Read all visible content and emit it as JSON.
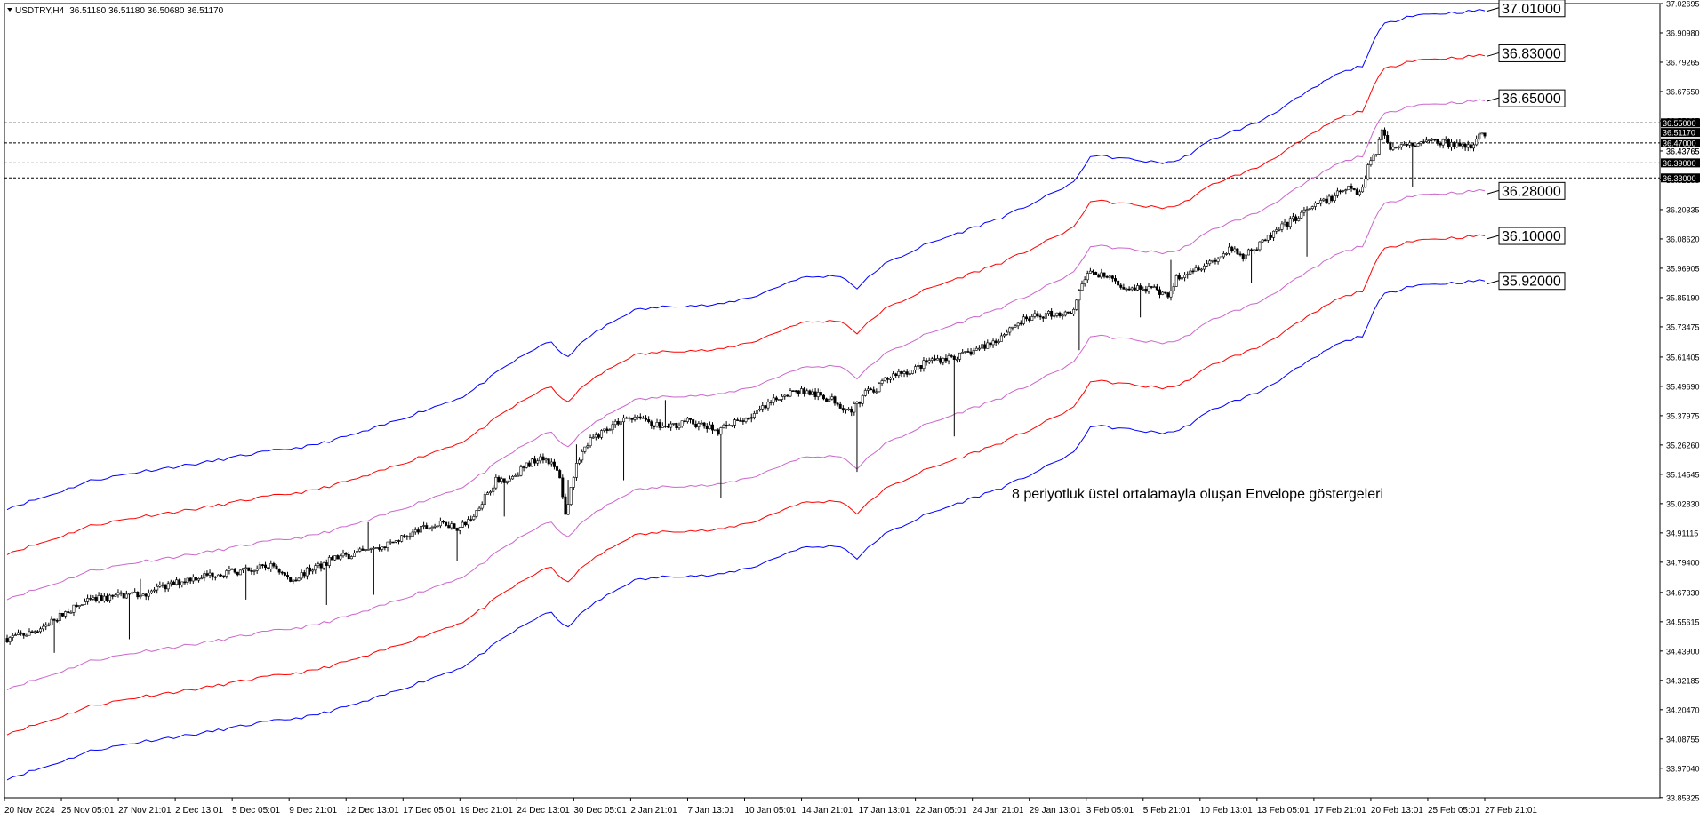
{
  "header": {
    "symbol_label": "USDTRY,H4",
    "ohlc": "36.51180 36.51180 36.50680 36.51170"
  },
  "annotation": "8 periyotluk üstel ortalamayla oluşan Envelope göstergeleri",
  "colors": {
    "background": "#ffffff",
    "candles": "#000000",
    "outer_band": "#0000ff",
    "middle_band": "#ff0000",
    "inner_band": "#cc66cc",
    "price_line": "#000000"
  },
  "chart_data": {
    "type": "candlestick",
    "symbol": "USDTRY",
    "timeframe": "H4",
    "indicator": "Envelopes (8, exponential)",
    "ylim": [
      33.8525,
      37.0269
    ],
    "y_ticks": [
      "37.02695",
      "36.90980",
      "36.79265",
      "36.67550",
      "36.55835",
      "36.43765",
      "36.32185",
      "36.20335",
      "36.08620",
      "35.96905",
      "35.85190",
      "35.73475",
      "35.61405",
      "35.49690",
      "35.37975",
      "35.26260",
      "35.14545",
      "35.02830",
      "34.91115",
      "34.79400",
      "34.67330",
      "34.55615",
      "34.43900",
      "34.32185",
      "34.20470",
      "34.08755",
      "33.97040",
      "33.85325"
    ],
    "x_ticks": [
      "20 Nov 2024",
      "25 Nov 05:01",
      "27 Nov 21:01",
      "2 Dec 13:01",
      "5 Dec 05:01",
      "9 Dec 21:01",
      "12 Dec 13:01",
      "17 Dec 05:01",
      "19 Dec 21:01",
      "24 Dec 13:01",
      "30 Dec 05:01",
      "2 Jan 21:01",
      "7 Jan 13:01",
      "10 Jan 05:01",
      "14 Jan 21:01",
      "17 Jan 13:01",
      "22 Jan 05:01",
      "24 Jan 21:01",
      "29 Jan 13:01",
      "3 Feb 05:01",
      "5 Feb 21:01",
      "10 Feb 13:01",
      "13 Feb 05:01",
      "17 Feb 21:01",
      "20 Feb 13:01",
      "25 Feb 05:01",
      "27 Feb 21:01"
    ],
    "bands": {
      "upper_outer": 37.01,
      "upper_middle": 36.83,
      "upper_inner": 36.65,
      "lower_inner": 36.28,
      "lower_middle": 36.1,
      "lower_outer": 35.92
    },
    "band_labels": [
      "37.01000",
      "36.83000",
      "36.65000",
      "36.28000",
      "36.10000",
      "35.92000"
    ],
    "horizontal_levels": [
      36.55,
      36.47,
      36.39,
      36.33
    ],
    "level_labels": [
      "36.55000",
      "36.47000",
      "36.39000",
      "36.33000"
    ],
    "current_price": 36.5117,
    "current_price_label": "36.51170",
    "last_price_tick": "36.43765",
    "close_path": [
      [
        0,
        34.49
      ],
      [
        8,
        34.51
      ],
      [
        15,
        34.55
      ],
      [
        22,
        34.6
      ],
      [
        30,
        34.64
      ],
      [
        40,
        34.66
      ],
      [
        50,
        34.67
      ],
      [
        58,
        34.7
      ],
      [
        66,
        34.73
      ],
      [
        76,
        34.75
      ],
      [
        86,
        34.76
      ],
      [
        96,
        34.78
      ],
      [
        102,
        34.72
      ],
      [
        110,
        34.77
      ],
      [
        118,
        34.81
      ],
      [
        126,
        34.83
      ],
      [
        134,
        34.85
      ],
      [
        142,
        34.89
      ],
      [
        150,
        34.93
      ],
      [
        158,
        34.95
      ],
      [
        163,
        34.93
      ],
      [
        168,
        34.98
      ],
      [
        172,
        35.06
      ],
      [
        176,
        35.12
      ],
      [
        181,
        35.13
      ],
      [
        187,
        35.18
      ],
      [
        192,
        35.22
      ],
      [
        195,
        35.2
      ],
      [
        199,
        35.14
      ],
      [
        201,
        34.98
      ],
      [
        205,
        35.2
      ],
      [
        210,
        35.28
      ],
      [
        216,
        35.33
      ],
      [
        222,
        35.37
      ],
      [
        228,
        35.38
      ],
      [
        232,
        35.35
      ],
      [
        238,
        35.33
      ],
      [
        244,
        35.36
      ],
      [
        250,
        35.34
      ],
      [
        256,
        35.32
      ],
      [
        262,
        35.35
      ],
      [
        268,
        35.38
      ],
      [
        274,
        35.42
      ],
      [
        280,
        35.47
      ],
      [
        286,
        35.48
      ],
      [
        292,
        35.46
      ],
      [
        298,
        35.44
      ],
      [
        303,
        35.4
      ],
      [
        306,
        35.42
      ],
      [
        309,
        35.48
      ],
      [
        312,
        35.47
      ],
      [
        316,
        35.52
      ],
      [
        320,
        35.55
      ],
      [
        326,
        35.56
      ],
      [
        332,
        35.6
      ],
      [
        338,
        35.61
      ],
      [
        344,
        35.62
      ],
      [
        350,
        35.65
      ],
      [
        356,
        35.68
      ],
      [
        361,
        35.73
      ],
      [
        366,
        35.76
      ],
      [
        372,
        35.78
      ],
      [
        378,
        35.79
      ],
      [
        383,
        35.78
      ],
      [
        385,
        35.84
      ],
      [
        388,
        35.93
      ],
      [
        391,
        35.96
      ],
      [
        396,
        35.93
      ],
      [
        402,
        35.9
      ],
      [
        408,
        35.89
      ],
      [
        414,
        35.88
      ],
      [
        418,
        35.86
      ],
      [
        421,
        35.93
      ],
      [
        425,
        35.96
      ],
      [
        430,
        35.98
      ],
      [
        436,
        36.01
      ],
      [
        440,
        36.04
      ],
      [
        445,
        36.02
      ],
      [
        450,
        36.05
      ],
      [
        455,
        36.1
      ],
      [
        460,
        36.14
      ],
      [
        465,
        36.18
      ],
      [
        470,
        36.21
      ],
      [
        474,
        36.24
      ],
      [
        477,
        36.25
      ],
      [
        480,
        36.27
      ],
      [
        484,
        36.29
      ],
      [
        487,
        36.26
      ],
      [
        490,
        36.38
      ],
      [
        493,
        36.44
      ],
      [
        495,
        36.52
      ],
      [
        498,
        36.45
      ],
      [
        502,
        36.47
      ],
      [
        506,
        36.46
      ],
      [
        510,
        36.47
      ],
      [
        514,
        36.48
      ],
      [
        518,
        36.47
      ],
      [
        522,
        36.46
      ],
      [
        526,
        36.45
      ],
      [
        530,
        36.5
      ],
      [
        532,
        36.51
      ]
    ],
    "envelope_mid_path": [
      [
        0,
        34.45
      ],
      [
        15,
        34.5
      ],
      [
        30,
        34.56
      ],
      [
        50,
        34.6
      ],
      [
        70,
        34.63
      ],
      [
        90,
        34.67
      ],
      [
        110,
        34.7
      ],
      [
        130,
        34.76
      ],
      [
        150,
        34.84
      ],
      [
        165,
        34.9
      ],
      [
        180,
        35.02
      ],
      [
        195,
        35.12
      ],
      [
        201,
        35.05
      ],
      [
        210,
        35.14
      ],
      [
        225,
        35.24
      ],
      [
        240,
        35.26
      ],
      [
        255,
        35.26
      ],
      [
        270,
        35.3
      ],
      [
        285,
        35.37
      ],
      [
        300,
        35.38
      ],
      [
        306,
        35.33
      ],
      [
        315,
        35.42
      ],
      [
        330,
        35.5
      ],
      [
        345,
        35.56
      ],
      [
        360,
        35.62
      ],
      [
        375,
        35.7
      ],
      [
        385,
        35.76
      ],
      [
        390,
        35.86
      ],
      [
        400,
        35.85
      ],
      [
        415,
        35.83
      ],
      [
        422,
        35.84
      ],
      [
        435,
        35.93
      ],
      [
        450,
        35.99
      ],
      [
        465,
        36.09
      ],
      [
        478,
        36.18
      ],
      [
        488,
        36.22
      ],
      [
        495,
        36.38
      ],
      [
        505,
        36.42
      ],
      [
        520,
        36.43
      ],
      [
        532,
        36.44
      ]
    ]
  }
}
